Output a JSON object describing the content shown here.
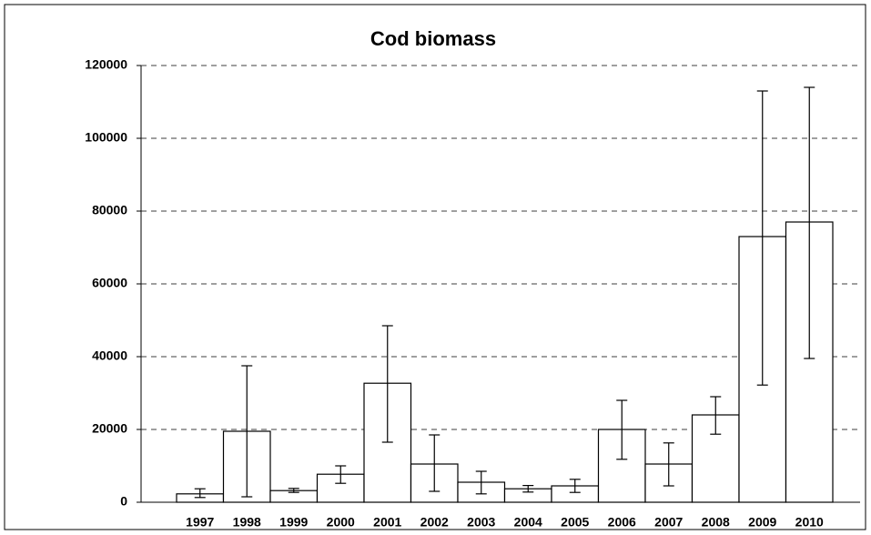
{
  "chart_data": {
    "type": "bar",
    "title": "Cod biomass",
    "categories": [
      "1997",
      "1998",
      "1999",
      "2000",
      "2001",
      "2002",
      "2003",
      "2004",
      "2005",
      "2006",
      "2007",
      "2008",
      "2009",
      "2010"
    ],
    "series": [
      {
        "color": "#ffffff",
        "values": [
          2300,
          19500,
          3200,
          7700,
          32700,
          10500,
          5500,
          3700,
          4500,
          20000,
          10500,
          24000,
          73000,
          77000
        ],
        "lower": [
          1300,
          1500,
          2700,
          5200,
          16500,
          3000,
          2300,
          2800,
          2700,
          11800,
          4500,
          18700,
          32200,
          39500
        ],
        "upper": [
          3700,
          37500,
          3800,
          10000,
          48500,
          18500,
          8500,
          4600,
          6300,
          28000,
          16300,
          29000,
          113000,
          114000
        ]
      }
    ],
    "ylim": [
      0,
      120000
    ],
    "yticks": [
      0,
      20000,
      40000,
      60000,
      80000,
      100000,
      120000
    ],
    "grid": true
  }
}
